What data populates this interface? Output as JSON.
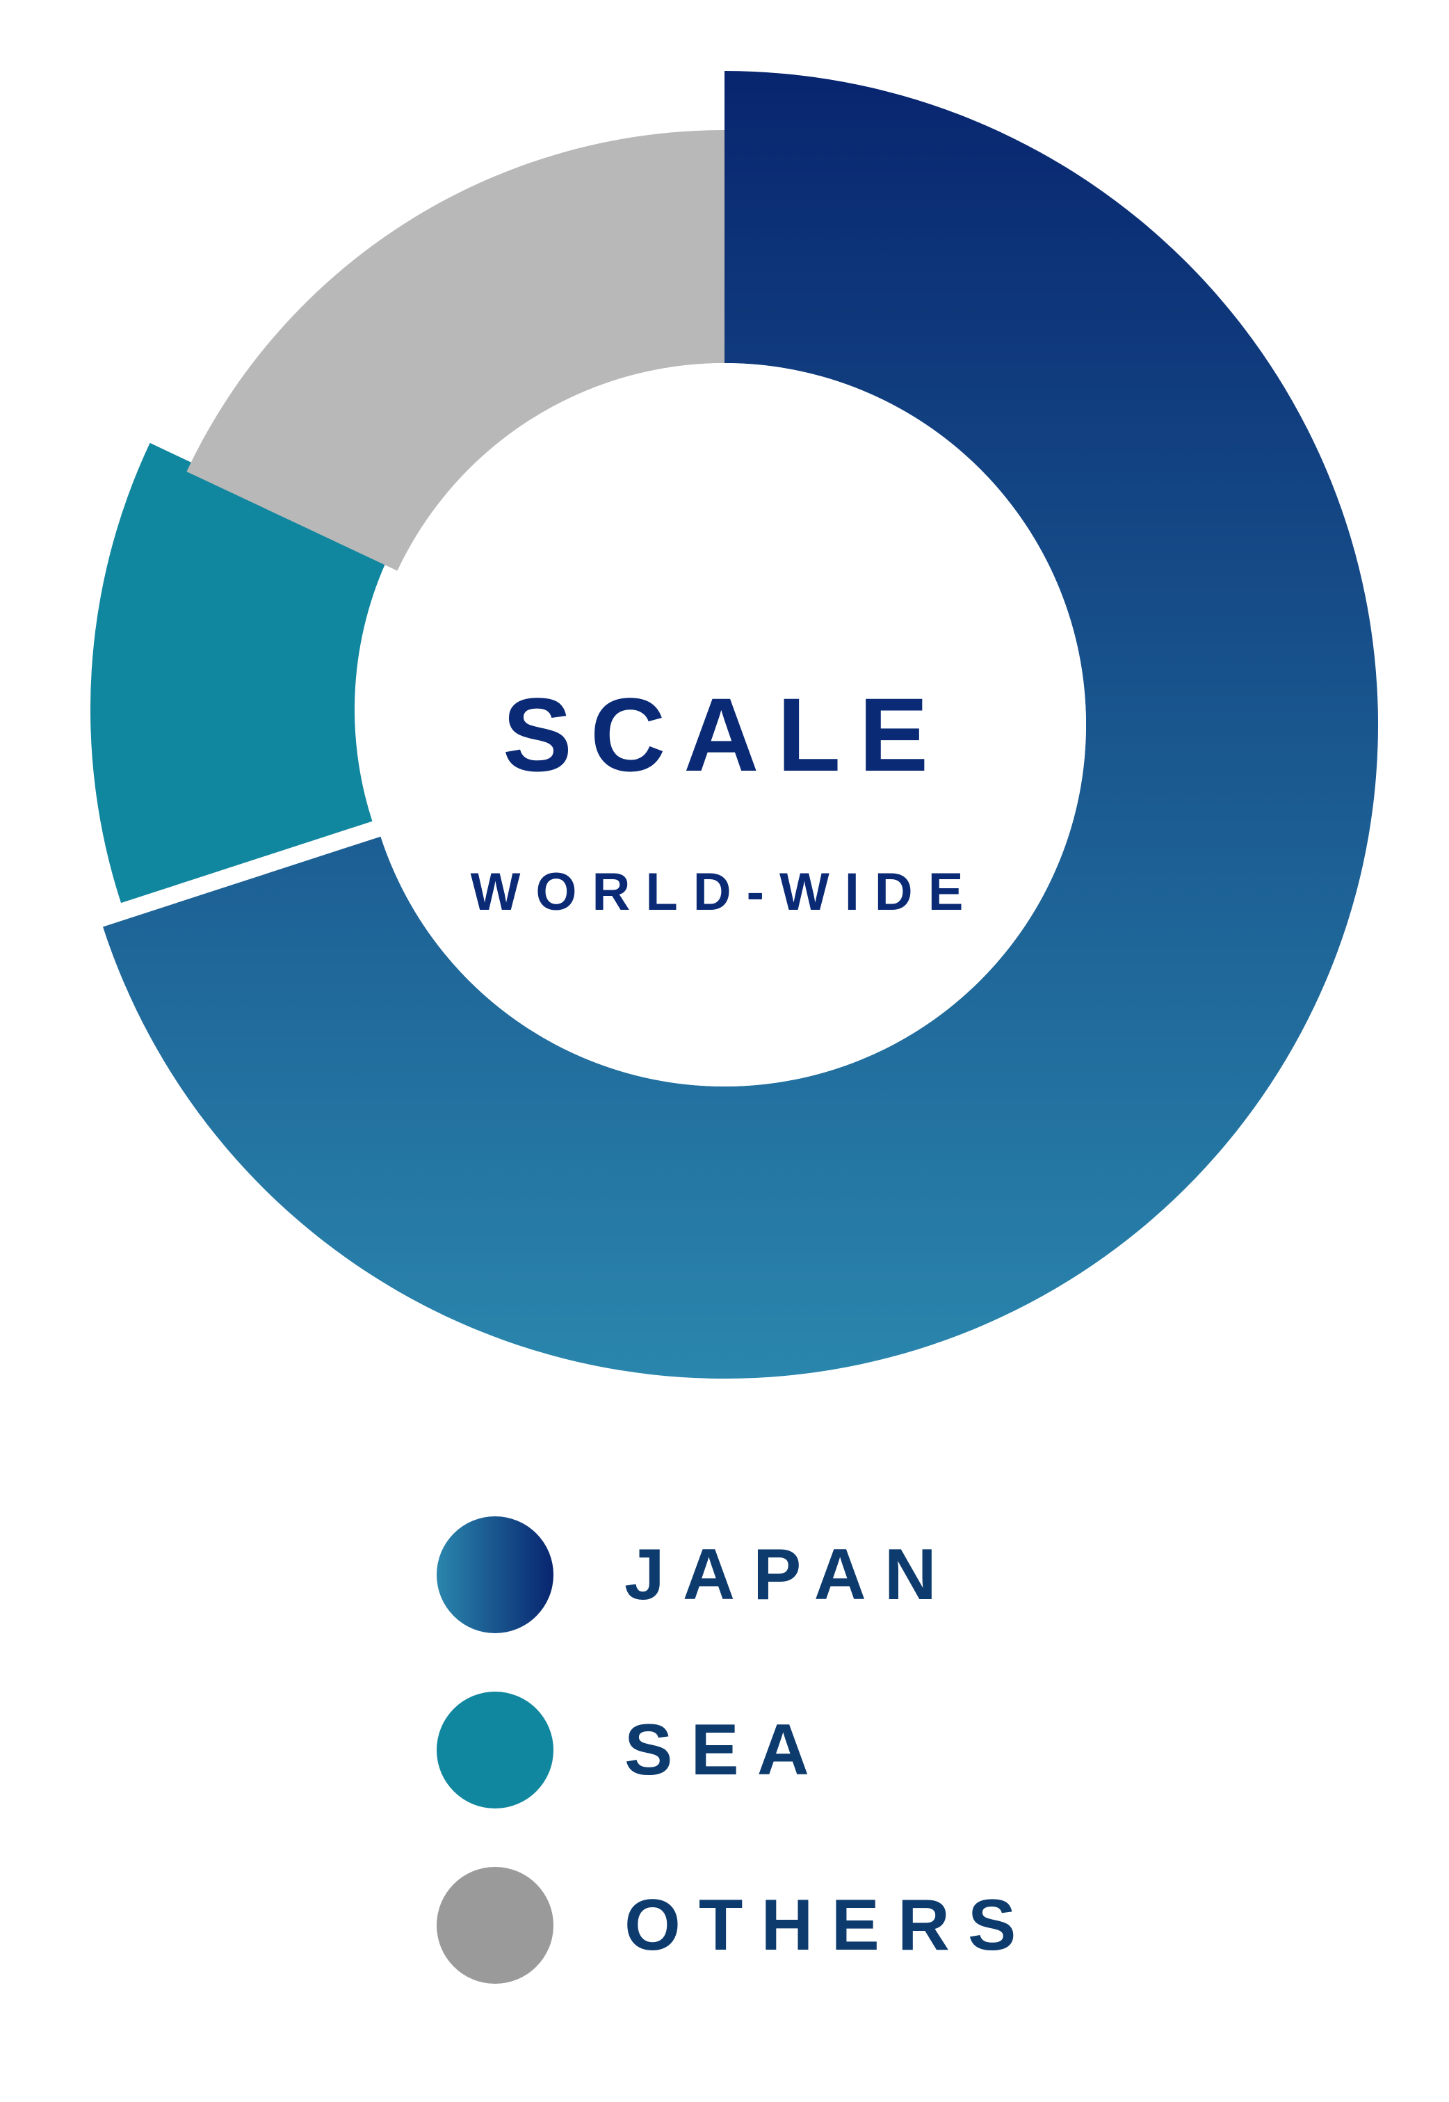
{
  "chart_data": {
    "type": "pie",
    "variant": "donut",
    "title": "SCALE",
    "subtitle": "WORLD-WIDE",
    "unit": "percent",
    "slices": [
      {
        "name": "JAPAN",
        "value": 70,
        "color_start": "#2a86ad",
        "color_end": "#08256f"
      },
      {
        "name": "SEA",
        "value": 12,
        "color": "#11879f"
      },
      {
        "name": "OTHERS",
        "value": 18,
        "color": "#b8b8b8"
      }
    ],
    "legend_position": "bottom"
  },
  "legend": {
    "items": [
      {
        "label": "JAPAN",
        "color_start": "#2a86ad",
        "color_end": "#08256f"
      },
      {
        "label": "SEA",
        "color": "#11879f"
      },
      {
        "label": "OTHERS",
        "color": "#9a9a9a"
      }
    ]
  },
  "colors": {
    "title_text": "#0a2a75",
    "legend_text": "#0d3b6e"
  }
}
